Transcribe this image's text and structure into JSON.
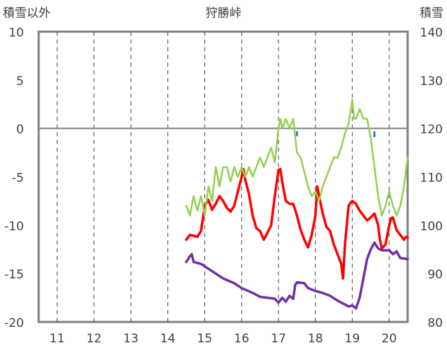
{
  "chart_data": {
    "type": "line",
    "title": "狩勝峠",
    "left_axis": {
      "label": "積雪以外",
      "ylim": [
        -20,
        10
      ],
      "ticks": [
        10,
        5,
        0,
        -5,
        -10,
        -15,
        -20
      ],
      "tick_labels": [
        "10",
        "5",
        "0",
        "-5",
        "-10",
        "-15",
        "-20"
      ]
    },
    "right_axis": {
      "label": "積雪",
      "ylim": [
        80,
        140
      ],
      "ticks": [
        140,
        130,
        120,
        110,
        100,
        90,
        80
      ],
      "tick_labels": [
        "140",
        "130",
        "120",
        "110",
        "100",
        "90",
        "80"
      ]
    },
    "x_axis": {
      "xlim": [
        10.5,
        20.5
      ],
      "ticks": [
        11,
        12,
        13,
        14,
        15,
        16,
        17,
        18,
        19,
        20
      ],
      "tick_labels": [
        "11",
        "12",
        "13",
        "14",
        "15",
        "16",
        "17",
        "18",
        "19",
        "20"
      ]
    },
    "grid": {
      "vertical": "dashed",
      "zero_line": true
    },
    "series": [
      {
        "key": "temperature",
        "color": "#ff0000",
        "axis": "left",
        "points": [
          [
            14.5,
            -11.5
          ],
          [
            14.6,
            -11.0
          ],
          [
            14.8,
            -11.2
          ],
          [
            14.9,
            -10.6
          ],
          [
            15.0,
            -8.0
          ],
          [
            15.1,
            -7.4
          ],
          [
            15.2,
            -8.4
          ],
          [
            15.3,
            -7.8
          ],
          [
            15.4,
            -7.0
          ],
          [
            15.5,
            -7.5
          ],
          [
            15.6,
            -8.2
          ],
          [
            15.7,
            -8.6
          ],
          [
            15.8,
            -8.0
          ],
          [
            15.9,
            -6.5
          ],
          [
            16.0,
            -5.0
          ],
          [
            16.05,
            -4.2
          ],
          [
            16.1,
            -5.3
          ],
          [
            16.2,
            -6.8
          ],
          [
            16.3,
            -9.0
          ],
          [
            16.4,
            -10.3
          ],
          [
            16.5,
            -10.6
          ],
          [
            16.6,
            -11.5
          ],
          [
            16.7,
            -10.8
          ],
          [
            16.8,
            -10.0
          ],
          [
            16.9,
            -7.0
          ],
          [
            17.0,
            -4.3
          ],
          [
            17.05,
            -4.2
          ],
          [
            17.1,
            -5.5
          ],
          [
            17.2,
            -7.5
          ],
          [
            17.3,
            -7.8
          ],
          [
            17.4,
            -7.8
          ],
          [
            17.5,
            -9.0
          ],
          [
            17.6,
            -10.5
          ],
          [
            17.7,
            -11.5
          ],
          [
            17.8,
            -12.3
          ],
          [
            17.9,
            -11.0
          ],
          [
            18.0,
            -9.0
          ],
          [
            18.05,
            -6.0
          ],
          [
            18.1,
            -7.0
          ],
          [
            18.2,
            -8.8
          ],
          [
            18.3,
            -10.2
          ],
          [
            18.4,
            -10.6
          ],
          [
            18.5,
            -12.0
          ],
          [
            18.6,
            -13.0
          ],
          [
            18.7,
            -14.0
          ],
          [
            18.75,
            -15.5
          ],
          [
            18.8,
            -12.0
          ],
          [
            18.9,
            -8.0
          ],
          [
            18.95,
            -7.7
          ],
          [
            19.0,
            -7.5
          ],
          [
            19.1,
            -7.8
          ],
          [
            19.2,
            -8.5
          ],
          [
            19.3,
            -9.0
          ],
          [
            19.4,
            -9.5
          ],
          [
            19.5,
            -9.2
          ],
          [
            19.6,
            -8.8
          ],
          [
            19.7,
            -10.0
          ],
          [
            19.75,
            -11.5
          ],
          [
            19.8,
            -12.4
          ],
          [
            19.9,
            -12.0
          ],
          [
            20.0,
            -10.0
          ],
          [
            20.05,
            -9.3
          ],
          [
            20.1,
            -9.2
          ],
          [
            20.2,
            -10.5
          ],
          [
            20.3,
            -11.0
          ],
          [
            20.4,
            -11.5
          ],
          [
            20.45,
            -11.2
          ],
          [
            20.5,
            -11.3
          ]
        ]
      },
      {
        "key": "snow_depth",
        "color": "#92d050",
        "axis": "right",
        "points": [
          [
            14.5,
            104
          ],
          [
            14.6,
            102
          ],
          [
            14.7,
            106
          ],
          [
            14.8,
            103
          ],
          [
            14.9,
            106
          ],
          [
            15.0,
            102
          ],
          [
            15.1,
            108
          ],
          [
            15.2,
            105
          ],
          [
            15.3,
            112
          ],
          [
            15.4,
            108
          ],
          [
            15.5,
            112
          ],
          [
            15.6,
            112
          ],
          [
            15.7,
            109
          ],
          [
            15.8,
            112
          ],
          [
            15.9,
            110
          ],
          [
            16.0,
            112
          ],
          [
            16.1,
            110
          ],
          [
            16.2,
            112
          ],
          [
            16.3,
            110
          ],
          [
            16.4,
            112
          ],
          [
            16.5,
            114
          ],
          [
            16.6,
            112
          ],
          [
            16.7,
            114
          ],
          [
            16.8,
            116
          ],
          [
            16.9,
            113
          ],
          [
            17.0,
            120
          ],
          [
            17.05,
            122
          ],
          [
            17.1,
            120
          ],
          [
            17.2,
            122
          ],
          [
            17.3,
            120
          ],
          [
            17.4,
            122
          ],
          [
            17.5,
            115
          ],
          [
            17.6,
            114
          ],
          [
            17.7,
            111
          ],
          [
            17.8,
            108
          ],
          [
            17.9,
            106
          ],
          [
            18.0,
            107
          ],
          [
            18.1,
            105
          ],
          [
            18.2,
            108
          ],
          [
            18.3,
            110
          ],
          [
            18.4,
            112
          ],
          [
            18.5,
            114
          ],
          [
            18.6,
            114
          ],
          [
            18.7,
            116
          ],
          [
            18.8,
            119
          ],
          [
            18.9,
            121
          ],
          [
            19.0,
            126
          ],
          [
            19.05,
            122
          ],
          [
            19.1,
            122
          ],
          [
            19.2,
            124
          ],
          [
            19.3,
            122
          ],
          [
            19.4,
            122
          ],
          [
            19.5,
            118
          ],
          [
            19.6,
            112
          ],
          [
            19.7,
            106
          ],
          [
            19.8,
            102
          ],
          [
            19.9,
            104
          ],
          [
            20.0,
            107
          ],
          [
            20.1,
            104
          ],
          [
            20.2,
            102
          ],
          [
            20.3,
            104
          ],
          [
            20.4,
            108
          ],
          [
            20.5,
            114
          ]
        ]
      },
      {
        "key": "other",
        "color": "#7030a0",
        "axis": "left",
        "points": [
          [
            14.5,
            -13.8
          ],
          [
            14.6,
            -13.2
          ],
          [
            14.65,
            -13.0
          ],
          [
            14.7,
            -13.8
          ],
          [
            14.9,
            -14.0
          ],
          [
            15.1,
            -14.5
          ],
          [
            15.3,
            -15.0
          ],
          [
            15.5,
            -15.5
          ],
          [
            15.8,
            -16.0
          ],
          [
            16.0,
            -16.5
          ],
          [
            16.3,
            -17.0
          ],
          [
            16.5,
            -17.4
          ],
          [
            16.9,
            -17.6
          ],
          [
            17.0,
            -18.0
          ],
          [
            17.1,
            -17.5
          ],
          [
            17.2,
            -17.9
          ],
          [
            17.3,
            -17.3
          ],
          [
            17.4,
            -17.6
          ],
          [
            17.45,
            -16.2
          ],
          [
            17.5,
            -15.9
          ],
          [
            17.7,
            -16.0
          ],
          [
            17.8,
            -16.5
          ],
          [
            18.0,
            -16.8
          ],
          [
            18.2,
            -17.0
          ],
          [
            18.4,
            -17.3
          ],
          [
            18.6,
            -17.8
          ],
          [
            18.8,
            -18.2
          ],
          [
            18.9,
            -18.4
          ],
          [
            19.0,
            -18.3
          ],
          [
            19.1,
            -18.6
          ],
          [
            19.2,
            -17.5
          ],
          [
            19.3,
            -15.5
          ],
          [
            19.4,
            -13.5
          ],
          [
            19.5,
            -12.5
          ],
          [
            19.6,
            -11.8
          ],
          [
            19.7,
            -12.4
          ],
          [
            19.8,
            -12.6
          ],
          [
            20.0,
            -12.6
          ],
          [
            20.1,
            -13.0
          ],
          [
            20.2,
            -12.7
          ],
          [
            20.3,
            -13.4
          ],
          [
            20.5,
            -13.5
          ]
        ]
      }
    ],
    "markers": {
      "color": "#0070c0",
      "items": [
        {
          "x": 17.5,
          "y_from": -0.3,
          "y_to": -0.8
        },
        {
          "x": 19.6,
          "y_from": -0.3,
          "y_to": -0.9
        }
      ]
    }
  }
}
